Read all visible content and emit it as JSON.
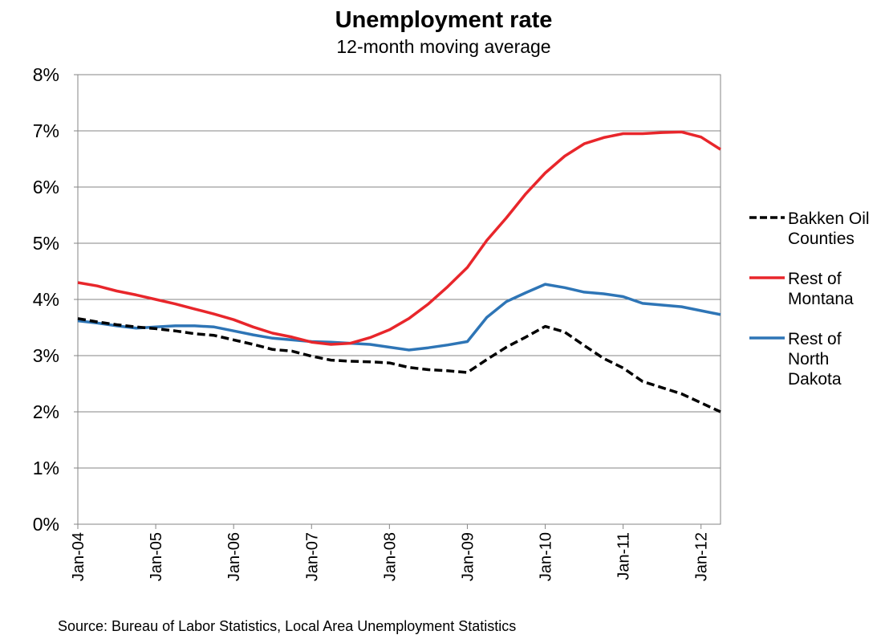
{
  "chart_data": {
    "type": "line",
    "title": "Unemployment rate",
    "subtitle": "12-month moving average",
    "source": "Source: Bureau of Labor Statistics, Local Area Unemployment Statistics",
    "y_tick_labels": [
      "0%",
      "1%",
      "2%",
      "3%",
      "4%",
      "5%",
      "6%",
      "7%",
      "8%"
    ],
    "ylim": [
      0,
      8
    ],
    "x_tick_labels": [
      "Jan-04",
      "Jan-05",
      "Jan-06",
      "Jan-07",
      "Jan-08",
      "Jan-09",
      "Jan-10",
      "Jan-11",
      "Jan-12"
    ],
    "x_range": [
      "Jan-04",
      "Apr-12"
    ],
    "grid": "horizontal",
    "legend_position": "right",
    "x": [
      "Jan-04",
      "Apr-04",
      "Jul-04",
      "Oct-04",
      "Jan-05",
      "Apr-05",
      "Jul-05",
      "Oct-05",
      "Jan-06",
      "Apr-06",
      "Jul-06",
      "Oct-06",
      "Jan-07",
      "Apr-07",
      "Jul-07",
      "Oct-07",
      "Jan-08",
      "Apr-08",
      "Jul-08",
      "Oct-08",
      "Jan-09",
      "Apr-09",
      "Jul-09",
      "Oct-09",
      "Jan-10",
      "Apr-10",
      "Jul-10",
      "Oct-10",
      "Jan-11",
      "Apr-11",
      "Jul-11",
      "Oct-11",
      "Jan-12",
      "Apr-12"
    ],
    "series": [
      {
        "name": "Bakken Oil Counties",
        "legend_lines": [
          "Bakken Oil",
          "Counties"
        ],
        "color": "#000000",
        "style": "dashed",
        "values": [
          3.66,
          3.6,
          3.55,
          3.51,
          3.48,
          3.44,
          3.39,
          3.36,
          3.28,
          3.2,
          3.11,
          3.08,
          2.99,
          2.92,
          2.9,
          2.89,
          2.87,
          2.79,
          2.75,
          2.73,
          2.7,
          2.93,
          3.15,
          3.33,
          3.52,
          3.42,
          3.18,
          2.95,
          2.78,
          2.54,
          2.43,
          2.32,
          2.16,
          2.0
        ]
      },
      {
        "name": "Rest of Montana",
        "legend_lines": [
          "Rest of",
          "Montana"
        ],
        "color": "#e8262b",
        "style": "solid",
        "values": [
          4.3,
          4.24,
          4.15,
          4.08,
          4.0,
          3.92,
          3.83,
          3.74,
          3.64,
          3.51,
          3.4,
          3.33,
          3.24,
          3.2,
          3.22,
          3.32,
          3.46,
          3.66,
          3.92,
          4.23,
          4.57,
          5.05,
          5.45,
          5.88,
          6.25,
          6.55,
          6.77,
          6.88,
          6.95,
          6.95,
          6.97,
          6.98,
          6.89,
          6.67
        ]
      },
      {
        "name": "Rest of North Dakota",
        "legend_lines": [
          "Rest of",
          "North",
          "Dakota"
        ],
        "color": "#2e75b6",
        "style": "solid",
        "values": [
          3.62,
          3.58,
          3.53,
          3.49,
          3.51,
          3.53,
          3.53,
          3.51,
          3.44,
          3.37,
          3.31,
          3.28,
          3.25,
          3.24,
          3.22,
          3.2,
          3.15,
          3.1,
          3.14,
          3.19,
          3.25,
          3.68,
          3.96,
          4.12,
          4.27,
          4.21,
          4.13,
          4.1,
          4.05,
          3.93,
          3.9,
          3.87,
          3.8,
          3.73
        ]
      }
    ]
  }
}
